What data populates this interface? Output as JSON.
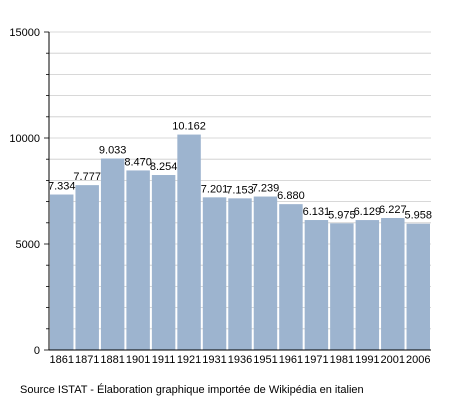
{
  "chart_data": {
    "type": "bar",
    "categories": [
      "1861",
      "1871",
      "1881",
      "1901",
      "1911",
      "1921",
      "1931",
      "1936",
      "1951",
      "1961",
      "1971",
      "1981",
      "1991",
      "2001",
      "2006"
    ],
    "values": [
      7334,
      7777,
      9033,
      8470,
      8254,
      10162,
      7201,
      7153,
      7239,
      6880,
      6131,
      5975,
      6129,
      6227,
      5958
    ],
    "value_labels": [
      "7.334",
      "7.777",
      "9.033",
      "8.470",
      "8.254",
      "10.162",
      "7.201",
      "7.153",
      "7.239",
      "6.880",
      "6.131",
      "5.975",
      "6.129",
      "6.227",
      "5.958"
    ],
    "ylim": [
      0,
      15000
    ],
    "yticks": [
      0,
      5000,
      10000,
      15000
    ],
    "ytick_labels": [
      "0",
      "5000",
      "10000",
      "15000"
    ],
    "grid": true,
    "bar_color": "#9db4cf",
    "grid_color": "#cccccc",
    "source": "Source ISTAT - Élaboration graphique importée de Wikipédia en italien"
  }
}
